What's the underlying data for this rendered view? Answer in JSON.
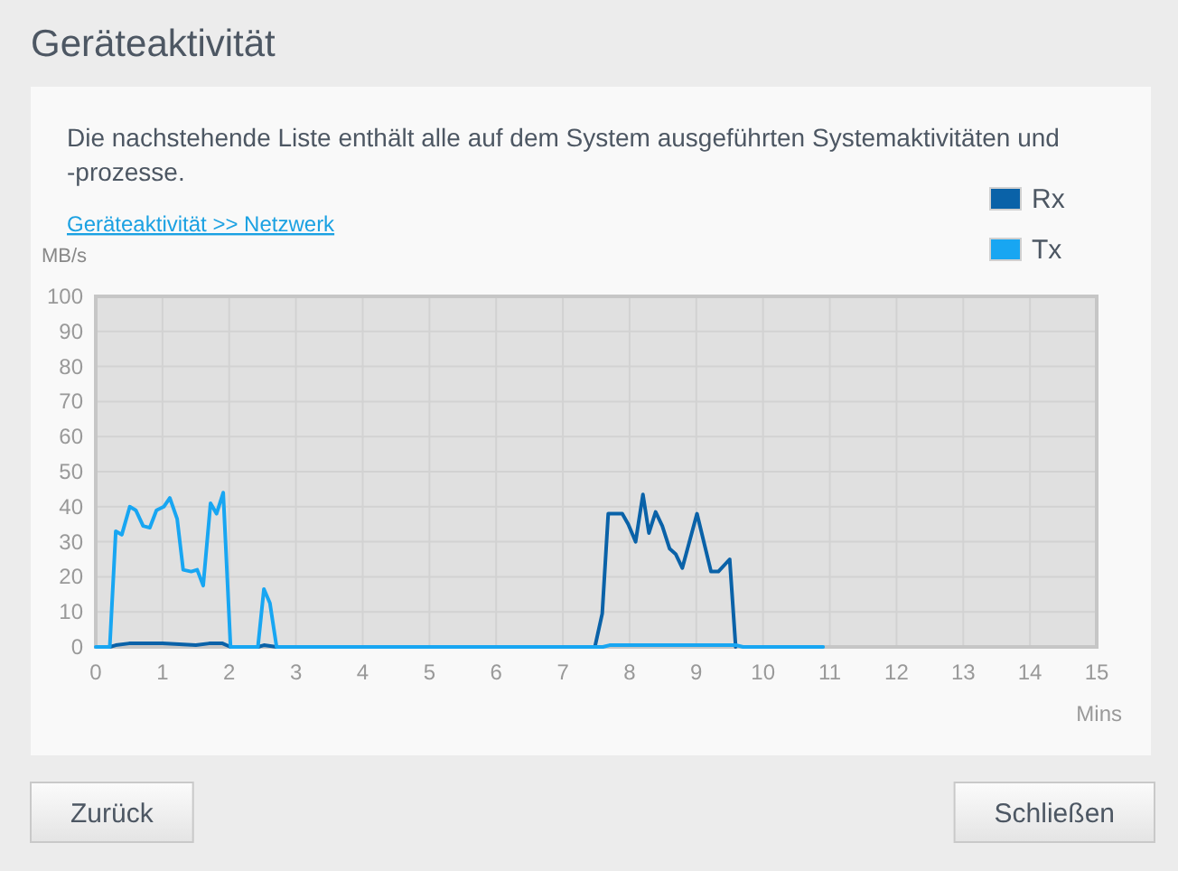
{
  "chart_data": {
    "type": "line",
    "title": "Geräteaktivität",
    "subtitle": "Die nachstehende Liste enthält alle auf dem System ausgeführten Systemaktivitäten und -prozesse.",
    "xlabel": "Mins",
    "ylabel": "MB/s",
    "annotations": [
      "Geräteaktivität >> Netzwerk",
      "Zurück",
      "Schließen"
    ],
    "series": [
      {
        "name": "Rx",
        "color": "#0a62a8",
        "x": [
          0.21,
          0.3,
          0.5,
          1,
          1.5,
          1.7,
          1.9,
          2.02,
          2.43,
          2.52,
          2.71,
          7.48,
          7.59,
          7.68,
          7.89,
          7.98,
          8.09,
          8.2,
          8.29,
          8.39,
          8.49,
          8.6,
          8.69,
          8.79,
          9.01,
          9.22,
          9.33,
          9.5,
          9.59
        ],
        "values": [
          0,
          0.5,
          1,
          1,
          0.5,
          1,
          1,
          0,
          0,
          0.5,
          0,
          0,
          9.5,
          38,
          38,
          35,
          30,
          43.5,
          32.5,
          38.5,
          34.5,
          28,
          26.5,
          22.5,
          38,
          21.5,
          21.5,
          25,
          0
        ]
      },
      {
        "name": "Tx",
        "color": "#18a6f2",
        "x": [
          0,
          0.21,
          0.3,
          0.39,
          0.51,
          0.6,
          0.71,
          0.81,
          0.91,
          1.02,
          1.11,
          1.22,
          1.31,
          1.43,
          1.52,
          1.61,
          1.72,
          1.81,
          1.91,
          2.02,
          2.43,
          2.52,
          2.61,
          2.71,
          7.6,
          7.7,
          9.6,
          9.7,
          10.9
        ],
        "values": [
          0,
          0,
          33,
          32,
          40,
          39,
          34.5,
          34,
          39,
          40,
          42.5,
          36.5,
          22,
          21.5,
          22,
          17.5,
          41,
          38,
          44,
          0,
          0,
          16.5,
          12.5,
          0,
          0,
          0.5,
          0.5,
          0,
          0
        ]
      }
    ],
    "xlim": [
      0,
      15
    ],
    "xticks": [
      0,
      1,
      2,
      3,
      4,
      5,
      6,
      7,
      8,
      9,
      10,
      11,
      12,
      13,
      14,
      15
    ],
    "ylim": [
      0,
      100
    ],
    "yticks": [
      0,
      10,
      20,
      30,
      40,
      50,
      60,
      70,
      80,
      90,
      100
    ],
    "grid": true,
    "legend": "top right"
  }
}
